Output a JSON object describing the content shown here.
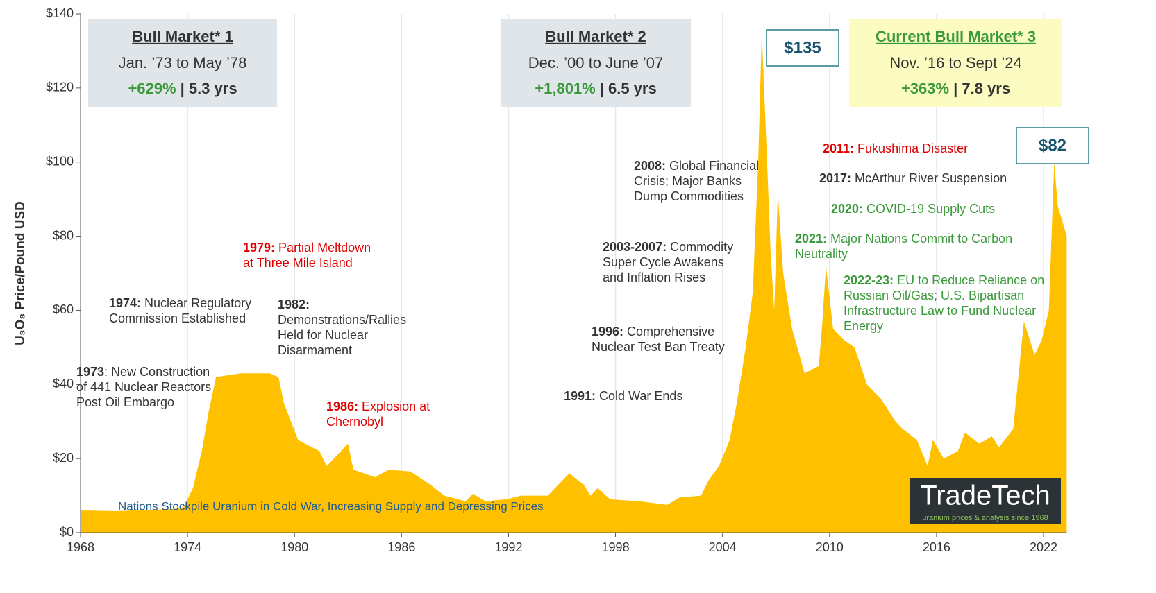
{
  "chart_data": {
    "type": "area",
    "color": "#ffc000",
    "y_label": "U₃O₈ Price/Pound USD",
    "xlim": [
      1968,
      2023.3
    ],
    "xticks": [
      1968,
      1974,
      1980,
      1986,
      1992,
      1998,
      2004,
      2010,
      2016,
      2022
    ],
    "ylim": [
      0,
      140
    ],
    "yticks": [
      {
        "value": 0,
        "label": "$0"
      },
      {
        "value": 20,
        "label": "$20"
      },
      {
        "value": 40,
        "label": "$40"
      },
      {
        "value": 60,
        "label": "$60"
      },
      {
        "value": 80,
        "label": "$80"
      },
      {
        "value": 100,
        "label": "$100"
      },
      {
        "value": 120,
        "label": "$120"
      },
      {
        "value": 140,
        "label": "$140"
      }
    ],
    "grid": true,
    "x": [
      1968,
      1970,
      1972,
      1973.5,
      1973.8,
      1974.3,
      1974.8,
      1975.2,
      1975.6,
      1977,
      1978.6,
      1979.1,
      1979.4,
      1980.2,
      1981.4,
      1981.8,
      1982.6,
      1983,
      1983.3,
      1984.5,
      1985.3,
      1986.5,
      1987.6,
      1988.4,
      1989.6,
      1990,
      1990.7,
      1991.9,
      1992.7,
      1994.2,
      1994.6,
      1995.4,
      1996.2,
      1996.6,
      1997,
      1997.7,
      1999.3,
      2000.9,
      2001.6,
      2002.8,
      2003.2,
      2003.8,
      2004.4,
      2004.8,
      2005.3,
      2005.7,
      2006,
      2006.2,
      2006.5,
      2006.7,
      2006.9,
      2007.1,
      2007.4,
      2007.9,
      2008.6,
      2009.4,
      2009.6,
      2009.8,
      2010.2,
      2010.8,
      2011.4,
      2012.1,
      2012.9,
      2013.7,
      2014.1,
      2014.9,
      2015.5,
      2015.8,
      2016.4,
      2017.2,
      2017.6,
      2018.4,
      2019.1,
      2019.5,
      2020.3,
      2020.9,
      2021.5,
      2021.9,
      2022.3,
      2022.6,
      2022.8,
      2023,
      2023.3
    ],
    "values": [
      6,
      5.8,
      6.2,
      6.5,
      7,
      12,
      22,
      33,
      42,
      43,
      43,
      42,
      35,
      25,
      22,
      18,
      22,
      24,
      17,
      15,
      17,
      16.5,
      13,
      10,
      8.5,
      10.5,
      8.5,
      9,
      10,
      10,
      12,
      16,
      13,
      10,
      12,
      9,
      8.5,
      7.5,
      9.5,
      10,
      14,
      18,
      25,
      35,
      50,
      65,
      100,
      135,
      100,
      75,
      60,
      92,
      70,
      55,
      43,
      45,
      57,
      72,
      55,
      52,
      50,
      40,
      36,
      30,
      28,
      25,
      18,
      25,
      20,
      22,
      27,
      24,
      26,
      23,
      28,
      57,
      48,
      52,
      60,
      100,
      88,
      85,
      80
    ],
    "boxes": [
      {
        "title": "Bull Market* 1",
        "period": "Jan. ’73 to May ’78",
        "gain": "+629%",
        "duration": "| 5.3 yrs"
      },
      {
        "title": "Bull Market* 2",
        "period": "Dec. ’00 to June ’07",
        "gain": "+1,801%",
        "duration": "| 6.5 yrs"
      },
      {
        "title": "Current Bull Market* 3",
        "period": "Nov. ’16 to Sept ’24",
        "gain": "+363%",
        "duration": "| 7.8 yrs"
      }
    ],
    "callouts": [
      "$135",
      "$82"
    ],
    "annotations": [
      {
        "label": "1973",
        "text": [
          ": New Construction",
          "of 441 Nuclear Reactors",
          "Post Oil Embargo"
        ]
      },
      {
        "label": "1974:",
        "text": [
          " Nuclear Regulatory",
          "Commission Established"
        ]
      },
      {
        "label": "1979:",
        "text": [
          " Partial Meltdown",
          "at Three Mile Island"
        ]
      },
      {
        "label": "1982:",
        "text": [
          "Demonstrations/Rallies",
          "Held for Nuclear",
          "Disarmament"
        ]
      },
      {
        "label": "1986:",
        "text": [
          " Explosion at",
          "Chernobyl"
        ]
      },
      {
        "label": "1991:",
        "text": [
          " Cold War Ends"
        ]
      },
      {
        "label": "1996:",
        "text": [
          " Comprehensive",
          "Nuclear Test Ban Treaty"
        ]
      },
      {
        "label": "2003-2007:",
        "text": [
          " Commodity",
          "Super Cycle Awakens",
          "and Inflation Rises"
        ]
      },
      {
        "label": "2008:",
        "text": [
          " Global Financial",
          "Crisis; Major Banks",
          "Dump Commodities"
        ]
      },
      {
        "label": "2011:",
        "text": [
          " Fukushima Disaster"
        ]
      },
      {
        "label": "2017:",
        "text": [
          " McArthur River Suspension"
        ]
      },
      {
        "label": "2020:",
        "text": [
          " COVID-19 Supply Cuts"
        ]
      },
      {
        "label": "2021:",
        "text": [
          " Major Nations Commit to Carbon",
          "Neutrality"
        ]
      },
      {
        "label": "2022-23:",
        "text": [
          " EU to Reduce Reliance on",
          "Russian Oil/Gas; U.S. Bipartisan",
          "Infrastructure Law to Fund Nuclear",
          "Energy"
        ]
      }
    ],
    "note": "Nations Stockpile Uranium in Cold War, Increasing Supply and Depressing Prices",
    "logo": {
      "name": "TradeTech",
      "tagline": "uranium prices & analysis since 1968"
    }
  }
}
